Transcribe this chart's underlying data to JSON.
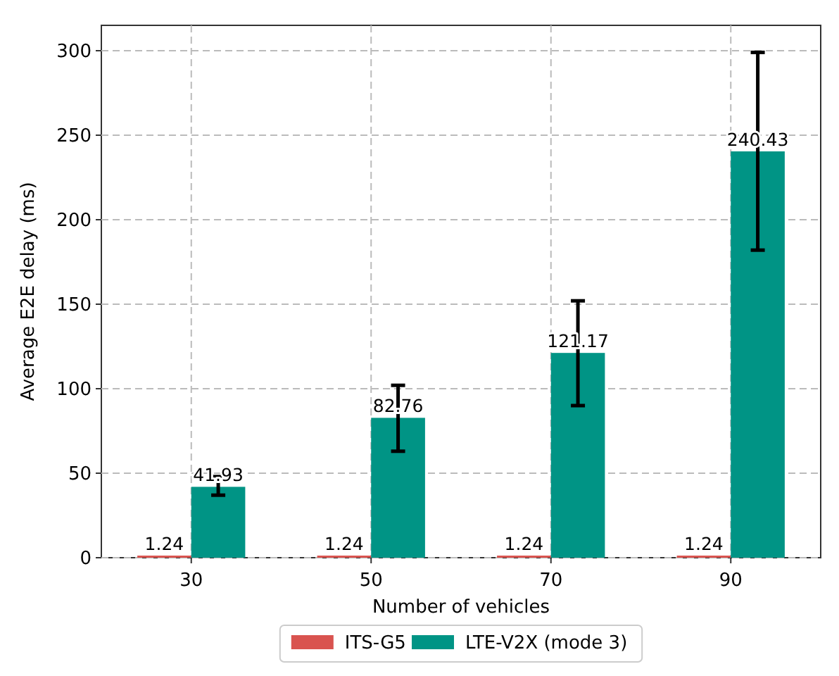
{
  "chart_data": {
    "type": "bar",
    "xlabel": "Number of vehicles",
    "ylabel": "Average E2E delay (ms)",
    "categories": [
      "30",
      "50",
      "70",
      "90"
    ],
    "series": [
      {
        "name": "ITS-G5",
        "color": "#d9534f",
        "values": [
          1.24,
          1.24,
          1.24,
          1.24
        ]
      },
      {
        "name": "LTE-V2X (mode 3)",
        "color": "#009485",
        "values": [
          41.93,
          82.76,
          121.17,
          240.43
        ],
        "errors": [
          [
            37,
            48
          ],
          [
            63,
            102
          ],
          [
            90,
            152
          ],
          [
            182,
            299
          ]
        ]
      }
    ],
    "ylim": [
      0,
      315
    ],
    "yticks": [
      0,
      50,
      100,
      150,
      200,
      250,
      300
    ],
    "grid": true,
    "legend": "bottom",
    "data_labels": true
  }
}
